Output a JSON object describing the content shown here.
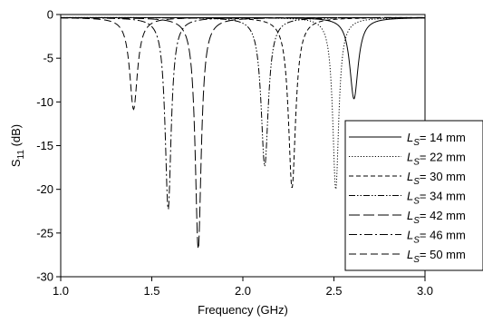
{
  "chart_data": {
    "type": "line",
    "xlabel": "Frequency (GHz)",
    "ylabel": {
      "main": "S",
      "sub": "11",
      "suffix": " (dB)"
    },
    "xlim": [
      1.0,
      3.0
    ],
    "ylim": [
      -30,
      0
    ],
    "xticks": [
      "1.0",
      "1.5",
      "2.0",
      "2.5",
      "3.0"
    ],
    "yticks": [
      "0",
      "-5",
      "-10",
      "-15",
      "-20",
      "-25",
      "-30"
    ],
    "grid": false,
    "legend_position": "right",
    "series": [
      {
        "name": "= 14 mm",
        "label_prefix": "L",
        "label_sub": "S",
        "dash": "solid",
        "dips": [
          {
            "f": 2.61,
            "depth": -9.3,
            "width": 0.028
          }
        ]
      },
      {
        "name": "= 22 mm",
        "label_prefix": "L",
        "label_sub": "S",
        "dash": "dot",
        "dips": [
          {
            "f": 2.51,
            "depth": -19.7,
            "width": 0.02
          }
        ]
      },
      {
        "name": "= 30 mm",
        "label_prefix": "L",
        "label_sub": "S",
        "dash": "shortdash",
        "dips": [
          {
            "f": 2.27,
            "depth": -19.5,
            "width": 0.024
          }
        ]
      },
      {
        "name": "= 34 mm",
        "label_prefix": "L",
        "label_sub": "S",
        "dash": "dashdotdot",
        "dips": [
          {
            "f": 2.12,
            "depth": -17.0,
            "width": 0.024
          }
        ]
      },
      {
        "name": "= 42 mm",
        "label_prefix": "L",
        "label_sub": "S",
        "dash": "longdash",
        "dips": [
          {
            "f": 1.755,
            "depth": -26.5,
            "width": 0.02
          }
        ]
      },
      {
        "name": "= 46 mm",
        "label_prefix": "L",
        "label_sub": "S",
        "dash": "dashdot",
        "dips": [
          {
            "f": 1.59,
            "depth": -22.0,
            "width": 0.02
          }
        ]
      },
      {
        "name": "= 50 mm",
        "label_prefix": "L",
        "label_sub": "S",
        "dash": "mediumdash",
        "dips": [
          {
            "f": 1.4,
            "depth": -10.5,
            "width": 0.026
          }
        ]
      }
    ]
  }
}
